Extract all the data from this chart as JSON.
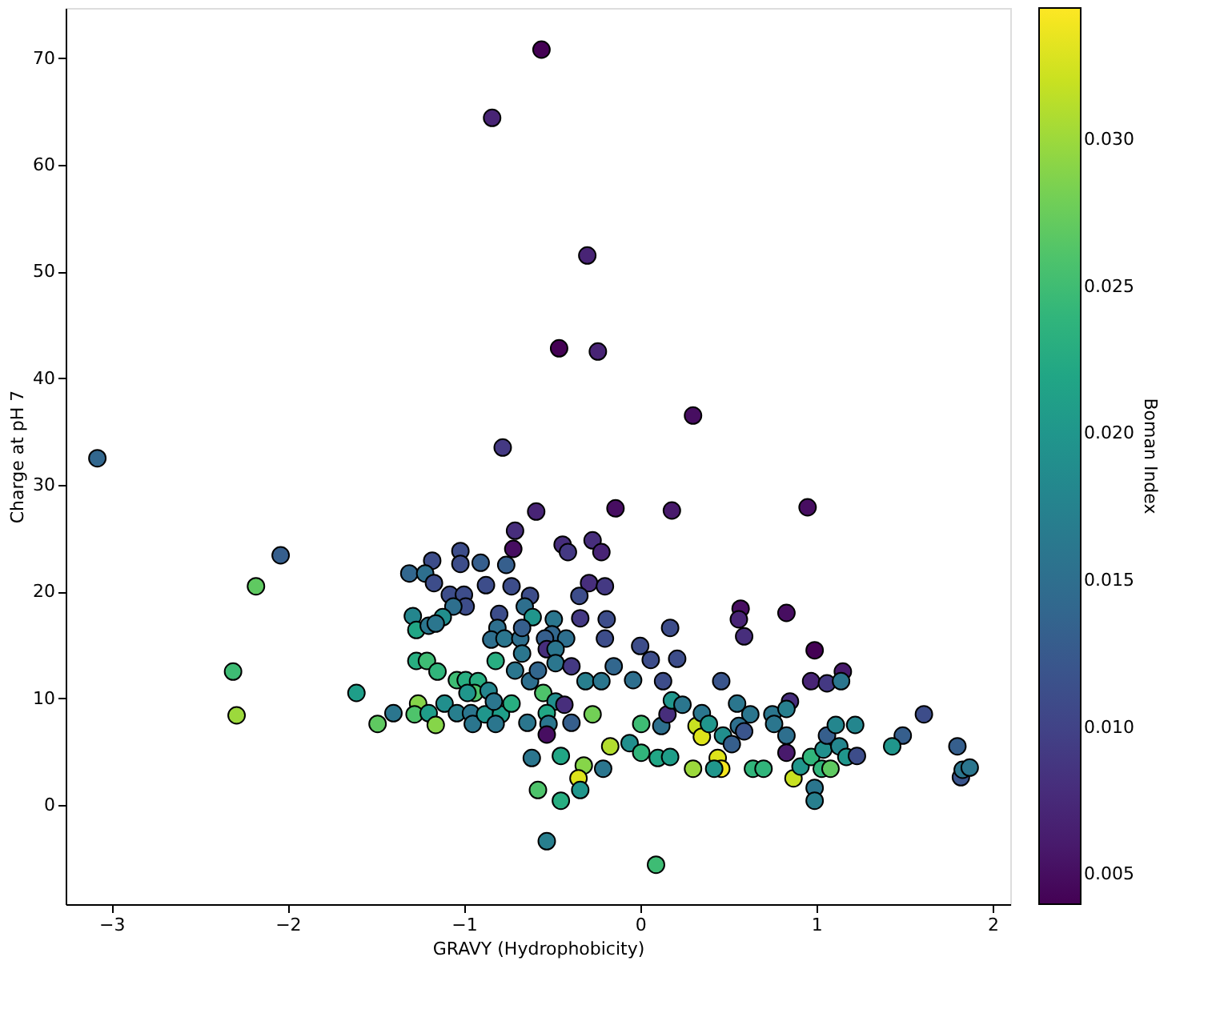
{
  "chart_data": {
    "type": "scatter",
    "xlabel": "GRAVY (Hydrophobicity)",
    "ylabel": "Charge at pH 7",
    "clabel": "Boman Index",
    "xlim": [
      -3.26,
      2.1
    ],
    "ylim": [
      -9.3,
      74.7
    ],
    "xticks": [
      -3,
      -2,
      -1,
      0,
      1,
      2
    ],
    "yticks": [
      0,
      10,
      20,
      30,
      40,
      50,
      60,
      70
    ],
    "clim": [
      0.004,
      0.0345
    ],
    "cticks": [
      0.005,
      {
        "value": 0.01,
        "label": "0.010"
      },
      0.015,
      {
        "value": 0.02,
        "label": "0.020"
      },
      0.025,
      {
        "value": 0.03,
        "label": "0.030"
      }
    ],
    "grid": false,
    "marker": "circle",
    "x": [
      -0.56,
      -0.84,
      -0.3,
      -0.46,
      -0.24,
      0.3,
      -0.78,
      -3.08,
      -0.59,
      -0.14,
      -0.71,
      -0.72,
      -0.44,
      -0.41,
      -0.27,
      -0.22,
      -1.18,
      -1.02,
      -1.02,
      -0.905,
      -0.76,
      -1.31,
      -1.22,
      -1.17,
      -1.08,
      -1.0,
      -0.99,
      -1.06,
      -0.875,
      -0.73,
      -0.625,
      -0.655,
      -0.61,
      -0.8,
      -1.29,
      -1.27,
      -1.2,
      -1.12,
      -1.16,
      -0.81,
      -0.845,
      -0.77,
      -0.68,
      -0.67,
      -0.67,
      -0.49,
      -0.5,
      -0.54,
      -0.42,
      -0.53,
      -0.48,
      -0.34,
      -0.29,
      -0.345,
      -0.2,
      -0.19,
      -0.2,
      -0.15,
      -0.48,
      -0.39,
      -0.31,
      -0.22,
      -0.71,
      -0.625,
      -0.58,
      -0.82,
      -1.27,
      -1.21,
      -1.15,
      -1.61,
      -1.4,
      -1.49,
      -1.26,
      -1.28,
      -1.2,
      -1.16,
      -1.11,
      -1.04,
      -0.99,
      -0.92,
      -0.94,
      -0.98,
      -0.86,
      -1.04,
      -0.96,
      -0.95,
      -0.88,
      -0.79,
      -0.82,
      -0.83,
      -0.73,
      -0.64,
      -0.55,
      -0.48,
      -0.43,
      -0.53,
      -0.52,
      -0.39,
      -0.53,
      -0.27,
      -0.615,
      -0.45,
      -0.17,
      -0.32,
      -0.35,
      -0.21,
      -0.34,
      -0.58,
      -0.45,
      -0.53,
      0.18,
      0.95,
      0.17,
      0.0,
      0.06,
      0.21,
      -0.04,
      0.13,
      0.46,
      0.57,
      0.56,
      0.59,
      0.83,
      0.99,
      1.15,
      0.97,
      1.06,
      1.14,
      1.61,
      1.49,
      1.43,
      0.006,
      -0.06,
      0.006,
      0.1,
      0.17,
      0.12,
      0.155,
      0.18,
      0.24,
      0.3,
      0.32,
      0.35,
      0.35,
      0.39,
      0.47,
      0.44,
      0.46,
      0.42,
      0.52,
      0.55,
      0.625,
      0.56,
      0.59,
      0.64,
      0.7,
      0.75,
      0.76,
      0.85,
      0.83,
      0.83,
      0.83,
      0.87,
      0.91,
      0.97,
      1.03,
      1.08,
      0.99,
      0.99,
      1.04,
      1.06,
      1.11,
      1.22,
      1.13,
      1.17,
      1.23,
      1.8,
      1.82,
      1.83,
      1.87,
      -2.31,
      -2.29,
      -2.18,
      -2.04,
      0.09
    ],
    "values": [
      70.8,
      64.4,
      51.5,
      42.8,
      42.5,
      36.5,
      33.5,
      32.5,
      27.5,
      27.8,
      25.7,
      24.0,
      24.4,
      23.7,
      24.8,
      23.7,
      22.9,
      23.8,
      22.6,
      22.7,
      22.5,
      21.7,
      21.7,
      20.8,
      19.7,
      19.7,
      18.6,
      18.6,
      20.6,
      20.5,
      19.6,
      18.6,
      17.6,
      17.9,
      17.7,
      16.4,
      16.8,
      17.6,
      17.0,
      16.6,
      15.5,
      15.6,
      15.6,
      16.6,
      14.2,
      17.4,
      16.0,
      15.6,
      15.6,
      14.6,
      14.6,
      17.5,
      20.8,
      19.6,
      20.5,
      17.4,
      15.6,
      13.0,
      13.3,
      13.0,
      11.6,
      11.6,
      12.6,
      11.6,
      12.6,
      13.5,
      13.5,
      13.5,
      12.5,
      10.5,
      8.6,
      7.6,
      9.5,
      8.5,
      8.6,
      7.5,
      9.5,
      11.7,
      11.7,
      11.6,
      10.5,
      10.5,
      10.7,
      8.6,
      8.6,
      7.6,
      8.5,
      8.5,
      7.6,
      9.7,
      9.5,
      7.7,
      10.5,
      9.7,
      9.4,
      8.6,
      7.6,
      7.7,
      6.6,
      8.5,
      4.4,
      4.6,
      5.5,
      3.7,
      2.5,
      3.4,
      1.4,
      1.4,
      0.4,
      -3.4,
      27.6,
      27.9,
      16.6,
      14.9,
      13.6,
      13.7,
      11.7,
      11.6,
      11.6,
      18.4,
      17.4,
      15.8,
      18.0,
      14.5,
      12.5,
      11.6,
      11.4,
      11.6,
      8.5,
      6.5,
      5.5,
      7.6,
      5.8,
      4.9,
      4.4,
      4.5,
      7.4,
      8.5,
      9.8,
      9.4,
      3.4,
      7.4,
      6.4,
      8.6,
      7.6,
      6.5,
      4.4,
      3.4,
      3.4,
      5.7,
      9.5,
      8.5,
      7.4,
      6.9,
      3.4,
      3.4,
      8.5,
      7.6,
      9.7,
      9.0,
      6.5,
      4.9,
      2.5,
      3.6,
      4.5,
      3.4,
      3.4,
      1.6,
      0.4,
      5.2,
      6.5,
      7.5,
      7.5,
      5.5,
      4.5,
      4.6,
      5.5,
      2.6,
      3.3,
      3.5,
      12.5,
      8.4,
      20.5,
      23.4,
      -5.6
    ],
    "cvalues": [
      0.004,
      0.007,
      0.007,
      0.004,
      0.007,
      0.005,
      0.009,
      0.014,
      0.007,
      0.005,
      0.008,
      0.005,
      0.008,
      0.009,
      0.008,
      0.007,
      0.011,
      0.011,
      0.011,
      0.013,
      0.013,
      0.014,
      0.015,
      0.011,
      0.011,
      0.011,
      0.011,
      0.015,
      0.011,
      0.011,
      0.011,
      0.015,
      0.02,
      0.011,
      0.018,
      0.022,
      0.016,
      0.019,
      0.016,
      0.015,
      0.015,
      0.016,
      0.015,
      0.013,
      0.016,
      0.016,
      0.014,
      0.013,
      0.015,
      0.008,
      0.016,
      0.009,
      0.008,
      0.011,
      0.009,
      0.011,
      0.011,
      0.014,
      0.016,
      0.009,
      0.017,
      0.016,
      0.016,
      0.015,
      0.014,
      0.023,
      0.023,
      0.025,
      0.024,
      0.021,
      0.016,
      0.027,
      0.029,
      0.026,
      0.021,
      0.029,
      0.019,
      0.025,
      0.023,
      0.023,
      0.026,
      0.02,
      0.018,
      0.017,
      0.016,
      0.016,
      0.02,
      0.021,
      0.016,
      0.016,
      0.023,
      0.016,
      0.026,
      0.019,
      0.008,
      0.022,
      0.016,
      0.013,
      0.005,
      0.028,
      0.016,
      0.022,
      0.031,
      0.029,
      0.033,
      0.016,
      0.02,
      0.026,
      0.023,
      0.017,
      0.006,
      0.005,
      0.011,
      0.011,
      0.011,
      0.011,
      0.015,
      0.011,
      0.012,
      0.005,
      0.007,
      0.008,
      0.005,
      0.004,
      0.006,
      0.007,
      0.009,
      0.016,
      0.011,
      0.013,
      0.02,
      0.025,
      0.019,
      0.024,
      0.022,
      0.021,
      0.015,
      0.008,
      0.02,
      0.016,
      0.03,
      0.032,
      0.033,
      0.016,
      0.02,
      0.019,
      0.033,
      0.034,
      0.02,
      0.013,
      0.016,
      0.016,
      0.015,
      0.012,
      0.024,
      0.024,
      0.016,
      0.016,
      0.008,
      0.017,
      0.015,
      0.006,
      0.032,
      0.02,
      0.024,
      0.024,
      0.027,
      0.016,
      0.017,
      0.019,
      0.013,
      0.018,
      0.018,
      0.018,
      0.02,
      0.011,
      0.013,
      0.012,
      0.016,
      0.016,
      0.025,
      0.03,
      0.027,
      0.013,
      0.025
    ]
  }
}
